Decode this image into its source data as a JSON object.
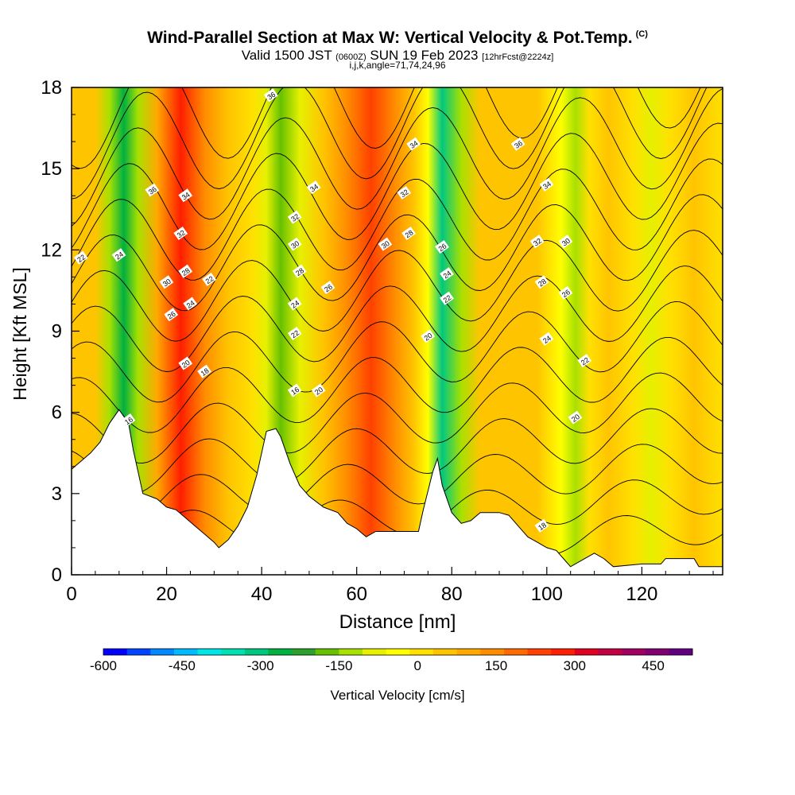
{
  "chart_data": {
    "type": "heatmap",
    "title": "Wind-Parallel Section at Max W: Vertical Velocity & Pot.Temp.",
    "title_unit": "(C)",
    "valid_prefix": "Valid 1500 JST",
    "valid_utc": "(0600Z)",
    "valid_date": "SUN 19 Feb 2023",
    "forecast": "[12hrFcst@2224z]",
    "grid_info": "i,j,k,angle=71,74,24,96",
    "xlabel": "Distance [nm]",
    "ylabel": "Height [Kft MSL]",
    "xlim": [
      0,
      137
    ],
    "ylim": [
      0,
      18
    ],
    "x_ticks": [
      0,
      20,
      40,
      60,
      80,
      100,
      120
    ],
    "y_ticks": [
      0,
      3,
      6,
      9,
      12,
      15,
      18
    ],
    "colorbar": {
      "label": "Vertical Velocity [cm/s]",
      "range": [
        -600,
        525
      ],
      "ticks": [
        -600,
        -450,
        -300,
        -150,
        0,
        150,
        300,
        450
      ],
      "colors": [
        "#0000ff",
        "#0044ff",
        "#0088ff",
        "#00bbff",
        "#00e5e5",
        "#00e0b0",
        "#00c880",
        "#00b040",
        "#2ca02c",
        "#66c000",
        "#a8e000",
        "#e6f000",
        "#ffff00",
        "#ffe000",
        "#ffc400",
        "#ffa800",
        "#ff8c00",
        "#ff6a00",
        "#ff4000",
        "#ff1e00",
        "#e00020",
        "#c00040",
        "#a00060",
        "#800070",
        "#600080"
      ]
    },
    "shading_bands": [
      {
        "x": 0,
        "w": 50
      },
      {
        "x": 5,
        "w": 30
      },
      {
        "x": 8,
        "w": -120
      },
      {
        "x": 11,
        "w": -280
      },
      {
        "x": 14,
        "w": -150
      },
      {
        "x": 18,
        "w": 80
      },
      {
        "x": 23,
        "w": 260
      },
      {
        "x": 28,
        "w": 150
      },
      {
        "x": 33,
        "w": 40
      },
      {
        "x": 38,
        "w": 0
      },
      {
        "x": 41,
        "w": -80
      },
      {
        "x": 44,
        "w": -190
      },
      {
        "x": 48,
        "w": -80
      },
      {
        "x": 53,
        "w": 40
      },
      {
        "x": 58,
        "w": 120
      },
      {
        "x": 63,
        "w": 210
      },
      {
        "x": 68,
        "w": 140
      },
      {
        "x": 72,
        "w": 60
      },
      {
        "x": 75,
        "w": -50
      },
      {
        "x": 78,
        "w": -290
      },
      {
        "x": 82,
        "w": -120
      },
      {
        "x": 86,
        "w": 30
      },
      {
        "x": 92,
        "w": 60
      },
      {
        "x": 98,
        "w": 30
      },
      {
        "x": 103,
        "w": -20
      },
      {
        "x": 106,
        "w": -130
      },
      {
        "x": 109,
        "w": 20
      },
      {
        "x": 113,
        "w": 40
      },
      {
        "x": 118,
        "w": 20
      },
      {
        "x": 122,
        "w": -90
      },
      {
        "x": 126,
        "w": 20
      },
      {
        "x": 131,
        "w": 30
      },
      {
        "x": 137,
        "w": 20
      }
    ],
    "terrain": [
      [
        0,
        3.9
      ],
      [
        2,
        4.2
      ],
      [
        4,
        4.5
      ],
      [
        6,
        4.9
      ],
      [
        8,
        5.6
      ],
      [
        10,
        6.1
      ],
      [
        12,
        5.6
      ],
      [
        13,
        4.6
      ],
      [
        15,
        3.0
      ],
      [
        18,
        2.8
      ],
      [
        20,
        2.5
      ],
      [
        22,
        2.4
      ],
      [
        24,
        2.1
      ],
      [
        26,
        1.8
      ],
      [
        28,
        1.5
      ],
      [
        30,
        1.2
      ],
      [
        31,
        1.0
      ],
      [
        33,
        1.3
      ],
      [
        35,
        1.8
      ],
      [
        37,
        2.5
      ],
      [
        39,
        3.7
      ],
      [
        40,
        4.5
      ],
      [
        41,
        5.3
      ],
      [
        43,
        5.4
      ],
      [
        44,
        5.1
      ],
      [
        46,
        4.1
      ],
      [
        48,
        3.3
      ],
      [
        50,
        2.9
      ],
      [
        53,
        2.5
      ],
      [
        56,
        2.3
      ],
      [
        58,
        1.9
      ],
      [
        60,
        1.7
      ],
      [
        62,
        1.4
      ],
      [
        64,
        1.6
      ],
      [
        67,
        1.6
      ],
      [
        70,
        1.6
      ],
      [
        73,
        1.6
      ],
      [
        74,
        2.4
      ],
      [
        76,
        3.8
      ],
      [
        77,
        4.3
      ],
      [
        78,
        3.3
      ],
      [
        80,
        2.3
      ],
      [
        82,
        1.9
      ],
      [
        84,
        2.0
      ],
      [
        86,
        2.3
      ],
      [
        90,
        2.3
      ],
      [
        92,
        2.2
      ],
      [
        94,
        1.8
      ],
      [
        96,
        1.4
      ],
      [
        98,
        1.2
      ],
      [
        100,
        1.0
      ],
      [
        102,
        0.9
      ],
      [
        104,
        0.5
      ],
      [
        105,
        0.3
      ],
      [
        108,
        0.6
      ],
      [
        110,
        0.8
      ],
      [
        112,
        0.6
      ],
      [
        114,
        0.3
      ],
      [
        120,
        0.4
      ],
      [
        124,
        0.4
      ],
      [
        125,
        0.6
      ],
      [
        131,
        0.6
      ],
      [
        132,
        0.3
      ],
      [
        137,
        0.3
      ]
    ],
    "theta_contours": [
      {
        "base": 1.0,
        "label": "18"
      },
      {
        "base": 2.2,
        "label": "20"
      },
      {
        "base": 3.4,
        "label": "20"
      },
      {
        "base": 4.6,
        "label": "22"
      },
      {
        "base": 5.8,
        "label": "22"
      },
      {
        "base": 7.0,
        "label": "24"
      },
      {
        "base": 8.2,
        "label": "24"
      },
      {
        "base": 9.4,
        "label": "26"
      },
      {
        "base": 10.6,
        "label": "26"
      },
      {
        "base": 11.8,
        "label": "28"
      },
      {
        "base": 13.0,
        "label": "30"
      },
      {
        "base": 14.2,
        "label": "32"
      },
      {
        "base": 15.4,
        "label": "34"
      },
      {
        "base": 16.6,
        "label": "36"
      },
      {
        "base": 17.8,
        "label": "36"
      }
    ],
    "contour_labels": [
      {
        "x": 2,
        "y": 11.7,
        "text": "22"
      },
      {
        "x": 10,
        "y": 11.8,
        "text": "24"
      },
      {
        "x": 17,
        "y": 14.2,
        "text": "36"
      },
      {
        "x": 24,
        "y": 14.0,
        "text": "34"
      },
      {
        "x": 23,
        "y": 12.6,
        "text": "32"
      },
      {
        "x": 24,
        "y": 11.2,
        "text": "28"
      },
      {
        "x": 20,
        "y": 10.8,
        "text": "30"
      },
      {
        "x": 29,
        "y": 10.9,
        "text": "22"
      },
      {
        "x": 25,
        "y": 10.0,
        "text": "24"
      },
      {
        "x": 21,
        "y": 9.6,
        "text": "26"
      },
      {
        "x": 24,
        "y": 7.8,
        "text": "20"
      },
      {
        "x": 28,
        "y": 7.5,
        "text": "18"
      },
      {
        "x": 12,
        "y": 5.7,
        "text": "16"
      },
      {
        "x": 42,
        "y": 17.7,
        "text": "36"
      },
      {
        "x": 51,
        "y": 14.3,
        "text": "34"
      },
      {
        "x": 47,
        "y": 13.2,
        "text": "32"
      },
      {
        "x": 47,
        "y": 12.2,
        "text": "30"
      },
      {
        "x": 48,
        "y": 11.2,
        "text": "28"
      },
      {
        "x": 54,
        "y": 10.6,
        "text": "26"
      },
      {
        "x": 47,
        "y": 10.0,
        "text": "24"
      },
      {
        "x": 47,
        "y": 8.9,
        "text": "22"
      },
      {
        "x": 47,
        "y": 6.8,
        "text": "16"
      },
      {
        "x": 52,
        "y": 6.8,
        "text": "20"
      },
      {
        "x": 72,
        "y": 15.9,
        "text": "34"
      },
      {
        "x": 70,
        "y": 14.1,
        "text": "32"
      },
      {
        "x": 71,
        "y": 12.6,
        "text": "28"
      },
      {
        "x": 66,
        "y": 12.2,
        "text": "30"
      },
      {
        "x": 78,
        "y": 12.1,
        "text": "26"
      },
      {
        "x": 79,
        "y": 11.1,
        "text": "24"
      },
      {
        "x": 79,
        "y": 10.2,
        "text": "22"
      },
      {
        "x": 75,
        "y": 8.8,
        "text": "20"
      },
      {
        "x": 94,
        "y": 15.9,
        "text": "36"
      },
      {
        "x": 100,
        "y": 14.4,
        "text": "34"
      },
      {
        "x": 98,
        "y": 12.3,
        "text": "32"
      },
      {
        "x": 104,
        "y": 12.3,
        "text": "30"
      },
      {
        "x": 99,
        "y": 10.8,
        "text": "28"
      },
      {
        "x": 104,
        "y": 10.4,
        "text": "26"
      },
      {
        "x": 100,
        "y": 8.7,
        "text": "24"
      },
      {
        "x": 108,
        "y": 7.9,
        "text": "22"
      },
      {
        "x": 106,
        "y": 5.8,
        "text": "20"
      },
      {
        "x": 99,
        "y": 1.8,
        "text": "18"
      }
    ]
  }
}
